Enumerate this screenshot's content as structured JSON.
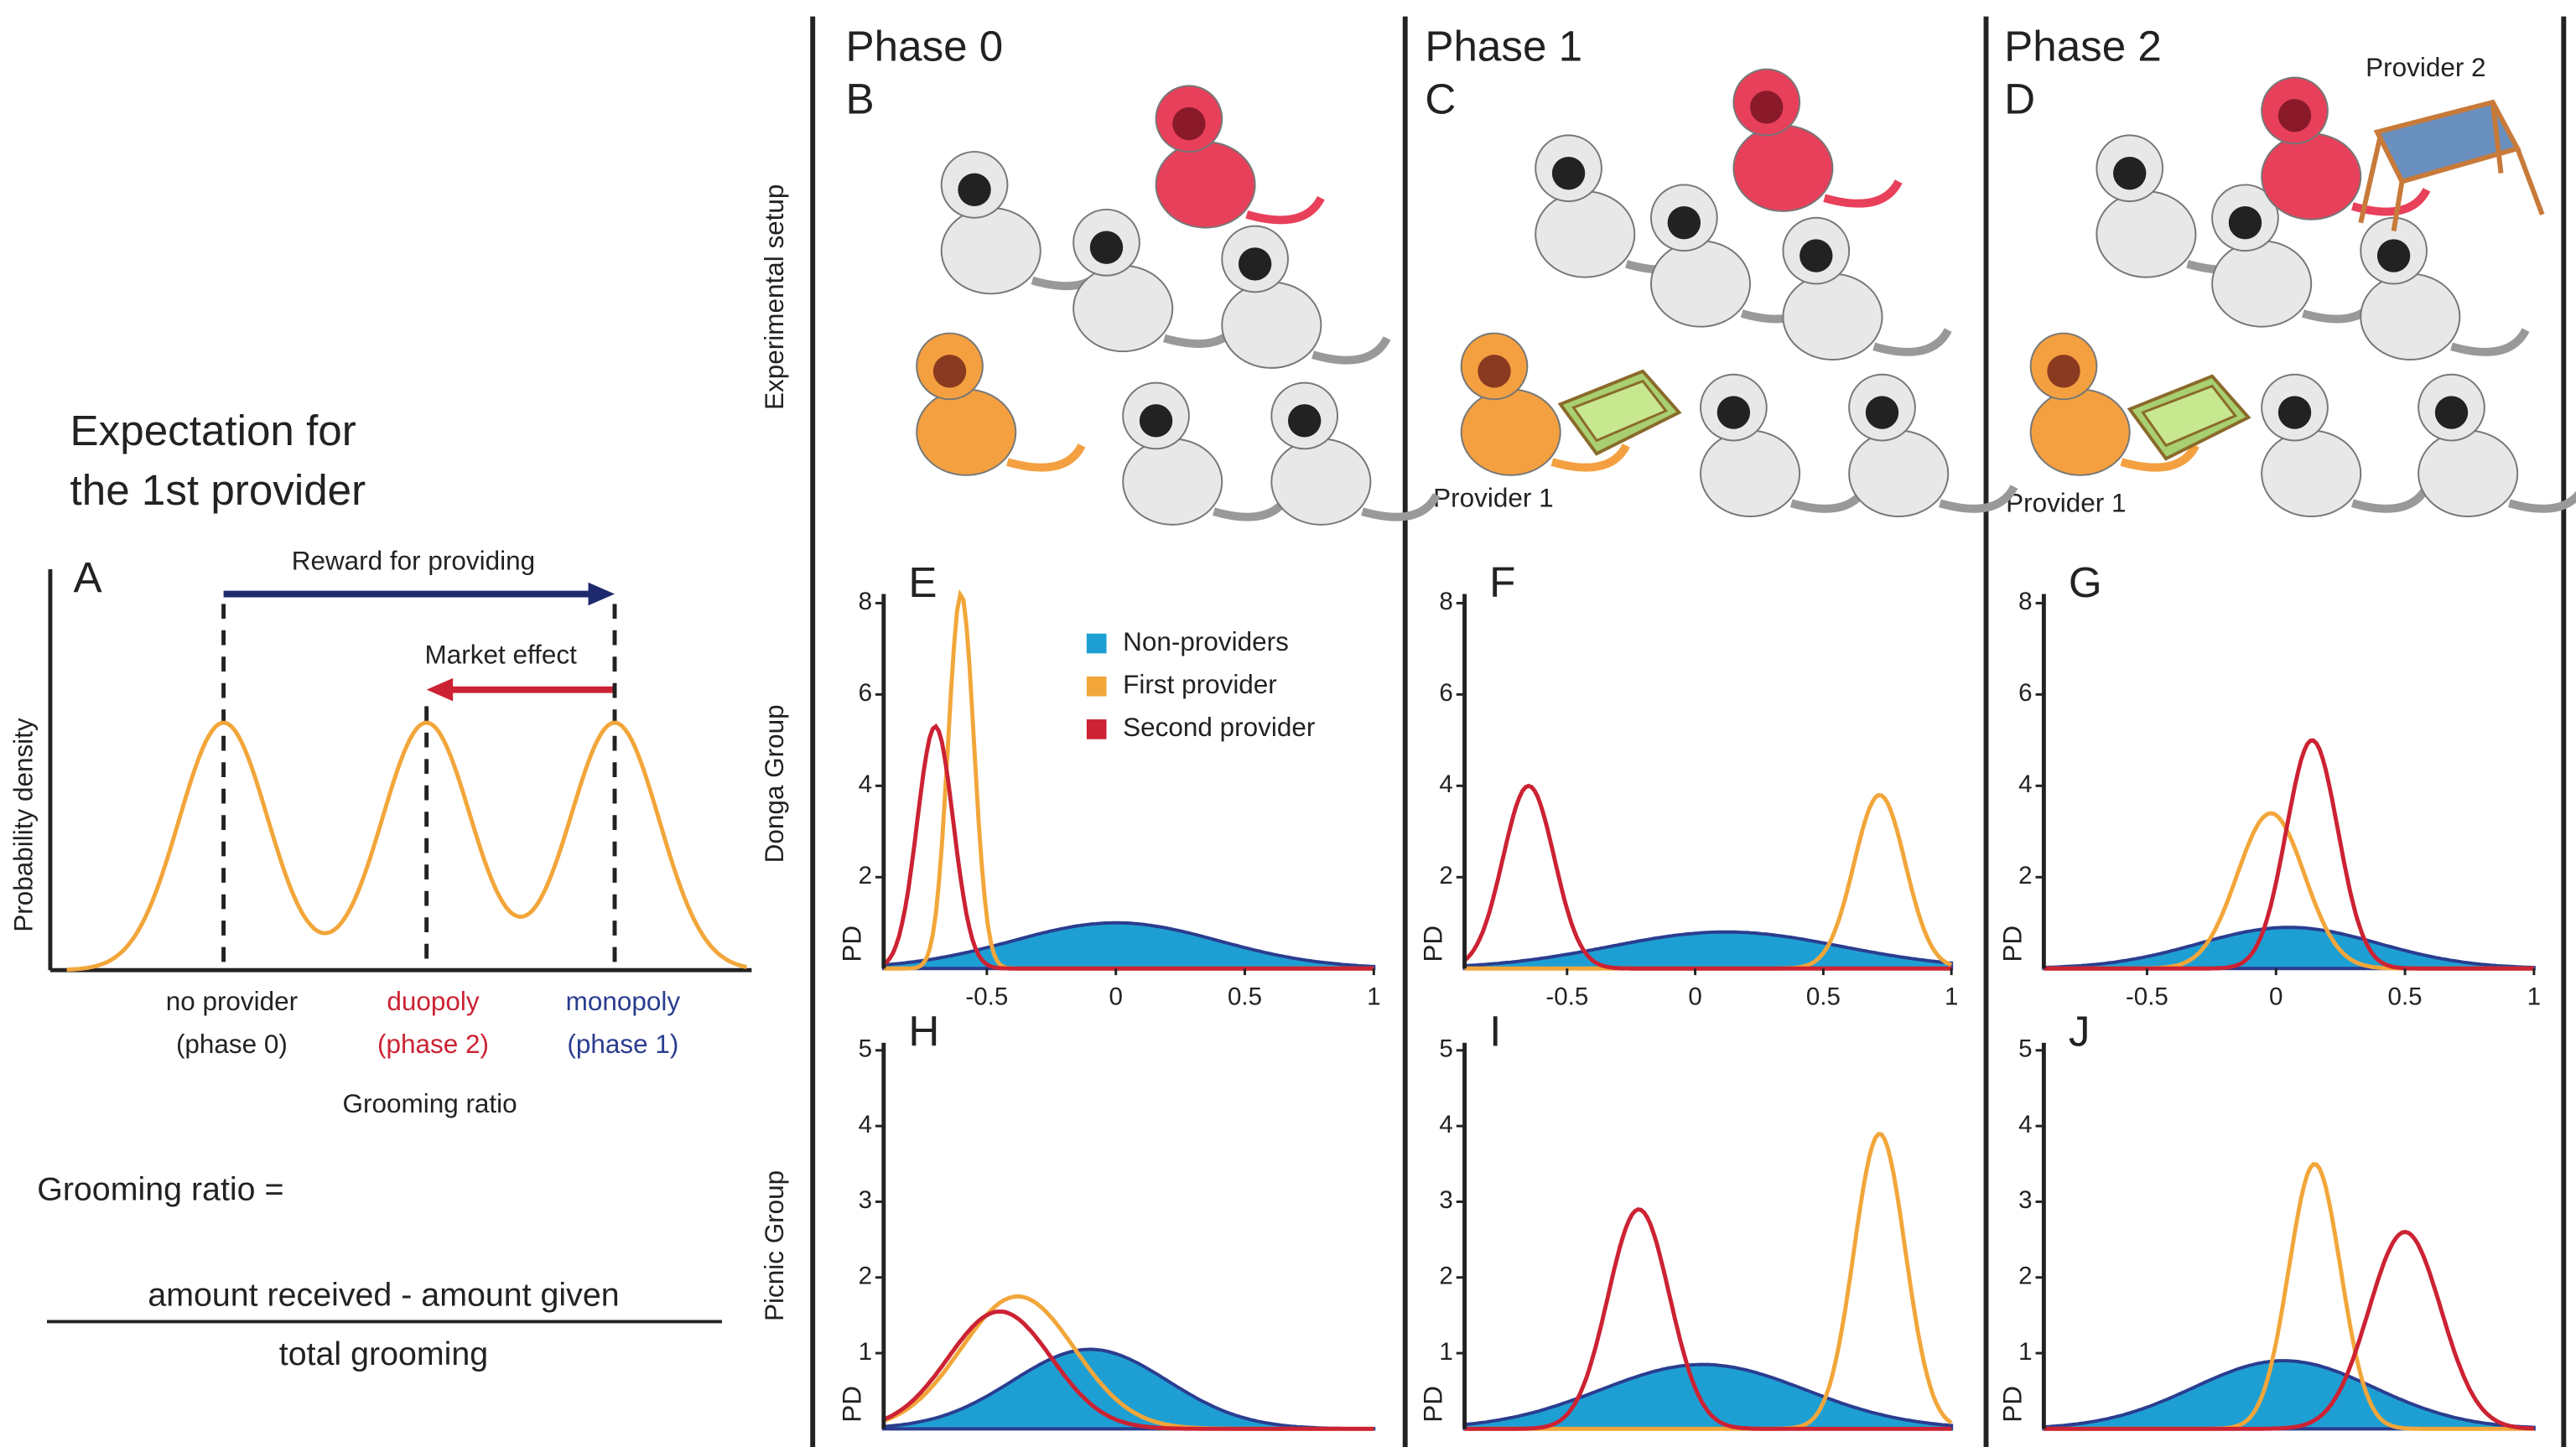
{
  "panel_a": {
    "title_line1": "Expectation for",
    "title_line2": "the 1st provider",
    "label": "A",
    "arrow_reward": "Reward for providing",
    "arrow_market": "Market effect",
    "ylabel": "Probability density",
    "cat0": "no provider",
    "cat0_phase": "(phase 0)",
    "cat1": "duopoly",
    "cat1_phase": "(phase 2)",
    "cat2": "monopoly",
    "cat2_phase": "(phase 1)",
    "xlabel": "Grooming ratio",
    "formula_lhs": "Grooming ratio =",
    "numerator": "amount received - amount given",
    "denominator": "total grooming"
  },
  "setup": {
    "row_label": "Experimental setup",
    "columns": [
      {
        "phase": "Phase 0",
        "label": "B"
      },
      {
        "phase": "Phase 1",
        "label": "C",
        "provider1": "Provider 1"
      },
      {
        "phase": "Phase 2",
        "label": "D",
        "provider1": "Provider 1",
        "provider2": "Provider 2"
      }
    ]
  },
  "row_labels": [
    "Donga Group",
    "Picnic Group"
  ],
  "legend": [
    {
      "name": "Non-providers",
      "color": "#1e9fd4"
    },
    {
      "name": "First provider",
      "color": "#f2a63a"
    },
    {
      "name": "Second provider",
      "color": "#cc2233"
    }
  ],
  "chart_data": [
    {
      "type": "density",
      "panel": "E",
      "ylabel": "PD",
      "xlim": [
        -0.9,
        1
      ],
      "xticks": [
        -0.5,
        0,
        0.5,
        1
      ],
      "ylim": [
        0,
        8.2
      ],
      "yticks": [
        2,
        4,
        6,
        8
      ],
      "series": [
        {
          "mean": 0,
          "peak": 1,
          "sd": 0.4
        },
        {
          "mean": -0.6,
          "peak": 8.2,
          "sd": 0.05
        },
        {
          "mean": -0.7,
          "peak": 5.3,
          "sd": 0.07
        }
      ]
    },
    {
      "type": "density",
      "panel": "F",
      "ylabel": "PD",
      "xlim": [
        -0.9,
        1
      ],
      "xticks": [
        -0.5,
        0,
        0.5,
        1
      ],
      "ylim": [
        0,
        8.2
      ],
      "yticks": [
        2,
        4,
        6,
        8
      ],
      "series": [
        {
          "mean": 0.12,
          "peak": 0.8,
          "sd": 0.45
        },
        {
          "mean": 0.72,
          "peak": 3.8,
          "sd": 0.1
        },
        {
          "mean": -0.65,
          "peak": 4,
          "sd": 0.1
        }
      ]
    },
    {
      "type": "density",
      "panel": "G",
      "ylabel": "PD",
      "xlim": [
        -0.9,
        1
      ],
      "xticks": [
        -0.5,
        0,
        0.5,
        1
      ],
      "ylim": [
        0,
        8.2
      ],
      "yticks": [
        2,
        4,
        6,
        8
      ],
      "series": [
        {
          "mean": 0.05,
          "peak": 0.9,
          "sd": 0.35
        },
        {
          "mean": -0.02,
          "peak": 3.4,
          "sd": 0.13
        },
        {
          "mean": 0.14,
          "peak": 5,
          "sd": 0.1
        }
      ]
    },
    {
      "type": "density",
      "panel": "H",
      "ylabel": "PD",
      "xlim": [
        -0.9,
        1
      ],
      "ylim": [
        0,
        5.1
      ],
      "yticks": [
        1,
        2,
        3,
        4,
        5
      ],
      "series": [
        {
          "mean": -0.1,
          "peak": 1.05,
          "sd": 0.3
        },
        {
          "mean": -0.38,
          "peak": 1.75,
          "sd": 0.22
        },
        {
          "mean": -0.45,
          "peak": 1.55,
          "sd": 0.2
        }
      ]
    },
    {
      "type": "density",
      "panel": "I",
      "ylabel": "PD",
      "xlim": [
        -0.9,
        1
      ],
      "ylim": [
        0,
        5.1
      ],
      "yticks": [
        1,
        2,
        3,
        4,
        5
      ],
      "series": [
        {
          "mean": 0.03,
          "peak": 0.85,
          "sd": 0.4
        },
        {
          "mean": 0.72,
          "peak": 3.9,
          "sd": 0.1
        },
        {
          "mean": -0.22,
          "peak": 2.9,
          "sd": 0.12
        }
      ]
    },
    {
      "type": "density",
      "panel": "J",
      "ylabel": "PD",
      "xlim": [
        -0.9,
        1
      ],
      "ylim": [
        0,
        5.1
      ],
      "yticks": [
        1,
        2,
        3,
        4,
        5
      ],
      "series": [
        {
          "mean": 0.03,
          "peak": 0.9,
          "sd": 0.35
        },
        {
          "mean": 0.15,
          "peak": 3.5,
          "sd": 0.1
        },
        {
          "mean": 0.5,
          "peak": 2.6,
          "sd": 0.14
        }
      ]
    }
  ]
}
